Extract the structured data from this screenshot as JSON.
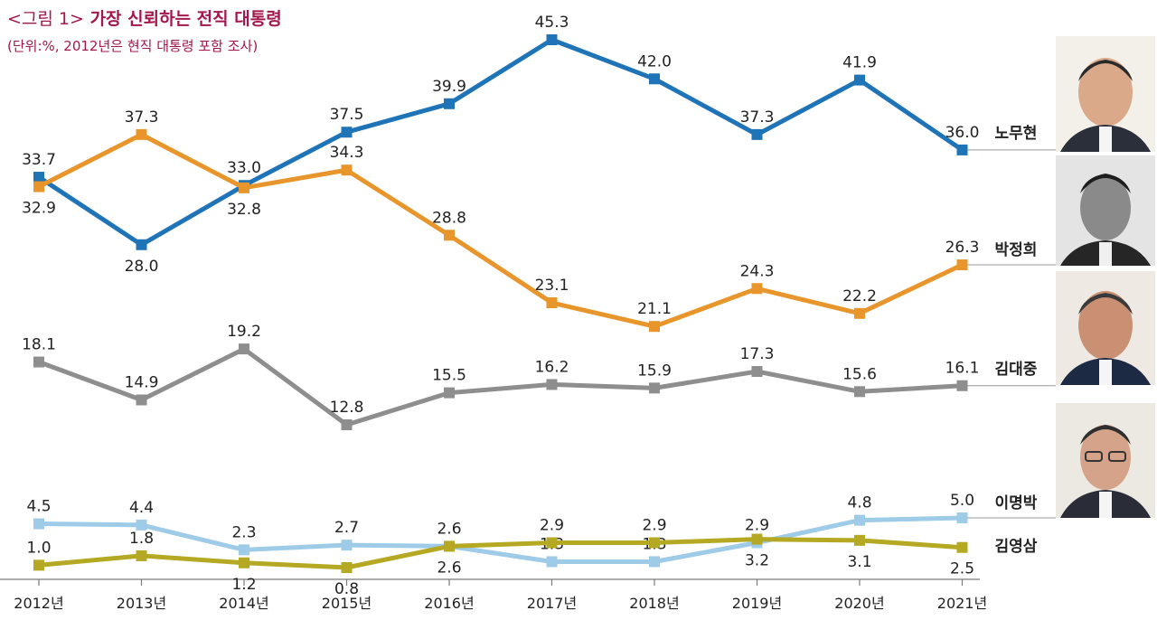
{
  "title_prefix": "<그림 1>",
  "title": "가장 신뢰하는 전직 대통령",
  "subtitle": "(단위:%, 2012년은 현직 대통령 포함 조사)",
  "colors": {
    "노무현": "#1f73b7",
    "박정희": "#e8952b",
    "김대중": "#8e8e8e",
    "이명박": "#9dcbe8",
    "김영삼": "#b5a823",
    "title": "#a3174f"
  },
  "chart_data": {
    "type": "line",
    "title": "가장 신뢰하는 전직 대통령",
    "subtitle": "(단위:%, 2012년은 현직 대통령 포함 조사)",
    "xlabel": "",
    "ylabel": "",
    "categories": [
      "2012년",
      "2013년",
      "2014년",
      "2015년",
      "2016년",
      "2017년",
      "2018년",
      "2019년",
      "2020년",
      "2021년"
    ],
    "grid": false,
    "legend": "right, labels at line ends with portraits",
    "series": [
      {
        "name": "노무현",
        "values": [
          33.7,
          28.0,
          33.0,
          37.5,
          39.9,
          45.3,
          42.0,
          37.3,
          41.9,
          36.0
        ]
      },
      {
        "name": "박정희",
        "values": [
          32.9,
          37.3,
          32.8,
          34.3,
          28.8,
          23.1,
          21.1,
          24.3,
          22.2,
          26.3
        ]
      },
      {
        "name": "김대중",
        "values": [
          18.1,
          14.9,
          19.2,
          12.8,
          15.5,
          16.2,
          15.9,
          17.3,
          15.6,
          16.1
        ]
      },
      {
        "name": "이명박",
        "values": [
          4.5,
          4.4,
          2.3,
          2.7,
          2.6,
          1.3,
          1.3,
          2.9,
          4.8,
          5.0
        ]
      },
      {
        "name": "김영삼",
        "values": [
          1.0,
          1.8,
          1.2,
          0.8,
          2.6,
          2.9,
          2.9,
          3.2,
          3.1,
          2.5
        ]
      }
    ]
  }
}
